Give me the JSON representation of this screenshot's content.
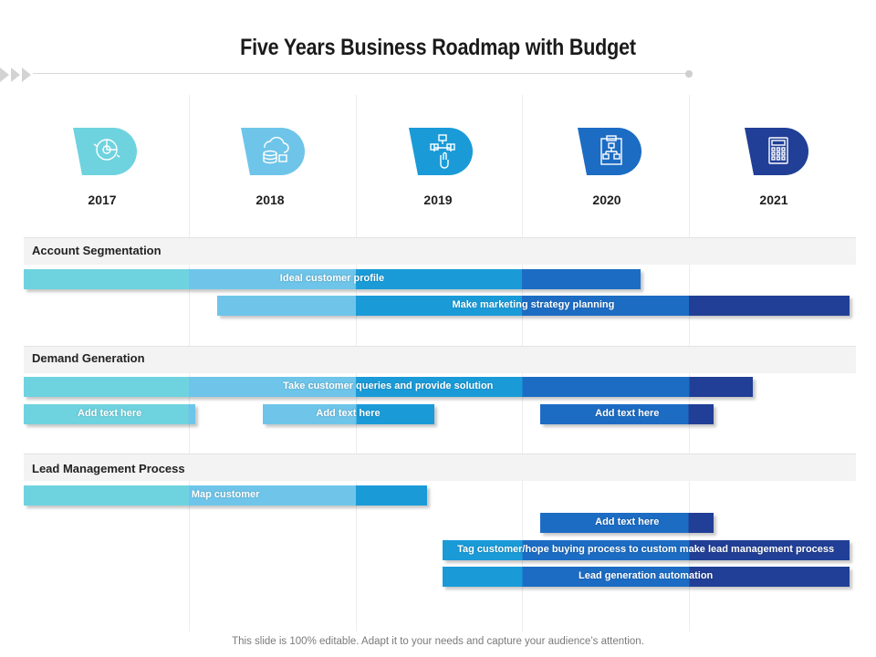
{
  "title": "Five Years Business Roadmap with Budget",
  "colors": {
    "y2017": "#6fd3df",
    "y2018": "#6ec5e9",
    "y2019": "#1a9bd8",
    "y2020": "#1c6cc4",
    "y2021": "#213f96"
  },
  "years": [
    {
      "label": "2017",
      "icon": "pie-chart-gear-icon"
    },
    {
      "label": "2018",
      "icon": "cloud-database-icon"
    },
    {
      "label": "2019",
      "icon": "flowchart-hand-icon"
    },
    {
      "label": "2020",
      "icon": "clipboard-org-chart-icon"
    },
    {
      "label": "2021",
      "icon": "calculator-icon"
    }
  ],
  "sections": [
    {
      "label": "Account  Segmentation",
      "bars": [
        {
          "label": "Ideal customer profile",
          "start": 0,
          "end": 3.71
        },
        {
          "label": "Make marketing strategy planning",
          "start": 1.17,
          "end": 4.96
        }
      ]
    },
    {
      "label": "Demand Generation",
      "bars": [
        {
          "label": "Take customer queries and provide solution",
          "start": 0,
          "end": 4.38
        },
        {
          "label": "Add text here",
          "start": 0,
          "end": 1.04
        },
        {
          "label": "Add text here",
          "start": 1.44,
          "end": 2.47
        },
        {
          "label": "Add text here",
          "start": 3.11,
          "end": 4.15
        }
      ]
    },
    {
      "label": "Lead Management Process",
      "bars": [
        {
          "label": "Map customer",
          "start": 0,
          "end": 2.43
        },
        {
          "label": "Add text here",
          "start": 3.11,
          "end": 4.15
        },
        {
          "label": "Tag customer/hope buying process to custom make lead management process",
          "start": 2.52,
          "end": 4.96
        },
        {
          "label": "Lead generation automation",
          "start": 2.52,
          "end": 4.96
        }
      ]
    }
  ],
  "footer": "This slide is 100% editable. Adapt it to your needs and capture your audience’s attention."
}
